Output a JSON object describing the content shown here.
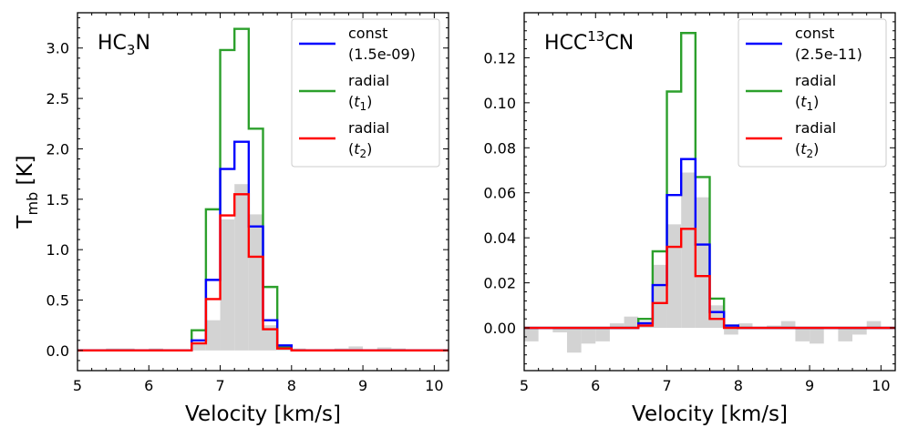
{
  "chart_data": [
    {
      "type": "line",
      "title_main": "HC",
      "title_sub": "3",
      "title_end": "N",
      "xlabel": "Velocity  [km/s]",
      "ylabel_main": "T",
      "ylabel_sub": "mb",
      "ylabel_unit": "  [K]",
      "xlim": [
        5,
        10.2
      ],
      "ylim": [
        -0.2,
        3.35
      ],
      "xticks": [
        5,
        6,
        7,
        8,
        9,
        10
      ],
      "yticks": [
        0.0,
        0.5,
        1.0,
        1.5,
        2.0,
        2.5,
        3.0
      ],
      "ytick_labels": [
        "0.0",
        "0.5",
        "1.0",
        "1.5",
        "2.0",
        "2.5",
        "3.0"
      ],
      "bin_width": 0.2,
      "bin_centers": [
        5.1,
        5.3,
        5.5,
        5.7,
        5.9,
        6.1,
        6.3,
        6.5,
        6.7,
        6.9,
        7.1,
        7.3,
        7.5,
        7.7,
        7.9,
        8.1,
        8.3,
        8.5,
        8.7,
        8.9,
        9.1,
        9.3,
        9.5,
        9.7,
        9.9,
        10.1
      ],
      "observed": {
        "name": "observed",
        "color": "#d3d3d3",
        "values": [
          0.0,
          0.01,
          0.02,
          0.02,
          0.01,
          0.02,
          0.0,
          0.01,
          0.08,
          0.3,
          1.3,
          1.65,
          1.35,
          0.25,
          0.05,
          0.02,
          0.0,
          0.0,
          0.02,
          0.04,
          0.0,
          0.03,
          0.02,
          0.0,
          0.01,
          0.0
        ]
      },
      "series": [
        {
          "name": "const (1.5e-09)",
          "legend_line1": "const",
          "legend_line2": "(1.5e-09)",
          "color": "#0000ff",
          "values": [
            0,
            0,
            0,
            0,
            0,
            0,
            0,
            0,
            0.1,
            0.7,
            1.8,
            2.07,
            1.23,
            0.3,
            0.05,
            0,
            0,
            0,
            0,
            0,
            0,
            0,
            0,
            0,
            0,
            0
          ]
        },
        {
          "name": "radial (t1)",
          "legend_line1": "radial",
          "legend_line2a": "(",
          "legend_italic": "t",
          "legend_sub": "1",
          "legend_line2b": ")",
          "color": "#2ca02c",
          "values": [
            0,
            0,
            0,
            0,
            0,
            0,
            0,
            0,
            0.2,
            1.4,
            2.98,
            3.19,
            2.2,
            0.63,
            0.04,
            0,
            0,
            0,
            0,
            0,
            0,
            0,
            0,
            0,
            0,
            0
          ]
        },
        {
          "name": "radial (t2)",
          "legend_line1": "radial",
          "legend_line2a": "(",
          "legend_italic": "t",
          "legend_sub": "2",
          "legend_line2b": ")",
          "color": "#ff0000",
          "values": [
            0,
            0,
            0,
            0,
            0,
            0,
            0,
            0,
            0.07,
            0.51,
            1.34,
            1.55,
            0.93,
            0.21,
            0.02,
            0,
            0,
            0,
            0,
            0,
            0,
            0,
            0,
            0,
            0,
            0
          ]
        }
      ]
    },
    {
      "type": "line",
      "title_main": "HCC",
      "title_sub": "13",
      "title_end": "CN",
      "xlabel": "Velocity  [km/s]",
      "xlim": [
        5,
        10.2
      ],
      "ylim": [
        -0.019,
        0.14
      ],
      "xticks": [
        5,
        6,
        7,
        8,
        9,
        10
      ],
      "yticks": [
        0.0,
        0.02,
        0.04,
        0.06,
        0.08,
        0.1,
        0.12
      ],
      "ytick_labels": [
        "0.00",
        "0.02",
        "0.04",
        "0.06",
        "0.08",
        "0.10",
        "0.12"
      ],
      "bin_width": 0.2,
      "bin_centers": [
        5.1,
        5.3,
        5.5,
        5.7,
        5.9,
        6.1,
        6.3,
        6.5,
        6.7,
        6.9,
        7.1,
        7.3,
        7.5,
        7.7,
        7.9,
        8.1,
        8.3,
        8.5,
        8.7,
        8.9,
        9.1,
        9.3,
        9.5,
        9.7,
        9.9,
        10.1
      ],
      "observed": {
        "name": "observed",
        "color": "#d3d3d3",
        "values": [
          -0.006,
          0.0,
          -0.002,
          -0.011,
          -0.007,
          -0.006,
          0.002,
          0.005,
          0.003,
          0.028,
          0.046,
          0.069,
          0.058,
          0.01,
          -0.003,
          0.002,
          0.0,
          0.001,
          0.003,
          -0.006,
          -0.007,
          0.0,
          -0.006,
          -0.003,
          0.003,
          0.0
        ]
      },
      "series": [
        {
          "name": "const (2.5e-11)",
          "legend_line1": "const",
          "legend_line2": "(2.5e-11)",
          "color": "#0000ff",
          "values": [
            0,
            0,
            0,
            0,
            0,
            0,
            0,
            0,
            0.002,
            0.019,
            0.059,
            0.075,
            0.037,
            0.007,
            0.001,
            0,
            0,
            0,
            0,
            0,
            0,
            0,
            0,
            0,
            0,
            0
          ]
        },
        {
          "name": "radial (t1)",
          "legend_line1": "radial",
          "legend_line2a": "(",
          "legend_italic": "t",
          "legend_sub": "1",
          "legend_line2b": ")",
          "color": "#2ca02c",
          "values": [
            0,
            0,
            0,
            0,
            0,
            0,
            0,
            0,
            0.004,
            0.034,
            0.105,
            0.131,
            0.067,
            0.013,
            0.001,
            0,
            0,
            0,
            0,
            0,
            0,
            0,
            0,
            0,
            0,
            0
          ]
        },
        {
          "name": "radial (t2)",
          "legend_line1": "radial",
          "legend_line2a": "(",
          "legend_italic": "t",
          "legend_sub": "2",
          "legend_line2b": ")",
          "color": "#ff0000",
          "values": [
            0,
            0,
            0,
            0,
            0,
            0,
            0,
            0,
            0.001,
            0.011,
            0.036,
            0.044,
            0.023,
            0.004,
            0.0,
            0,
            0,
            0,
            0,
            0,
            0,
            0,
            0,
            0,
            0,
            0
          ]
        }
      ]
    }
  ]
}
